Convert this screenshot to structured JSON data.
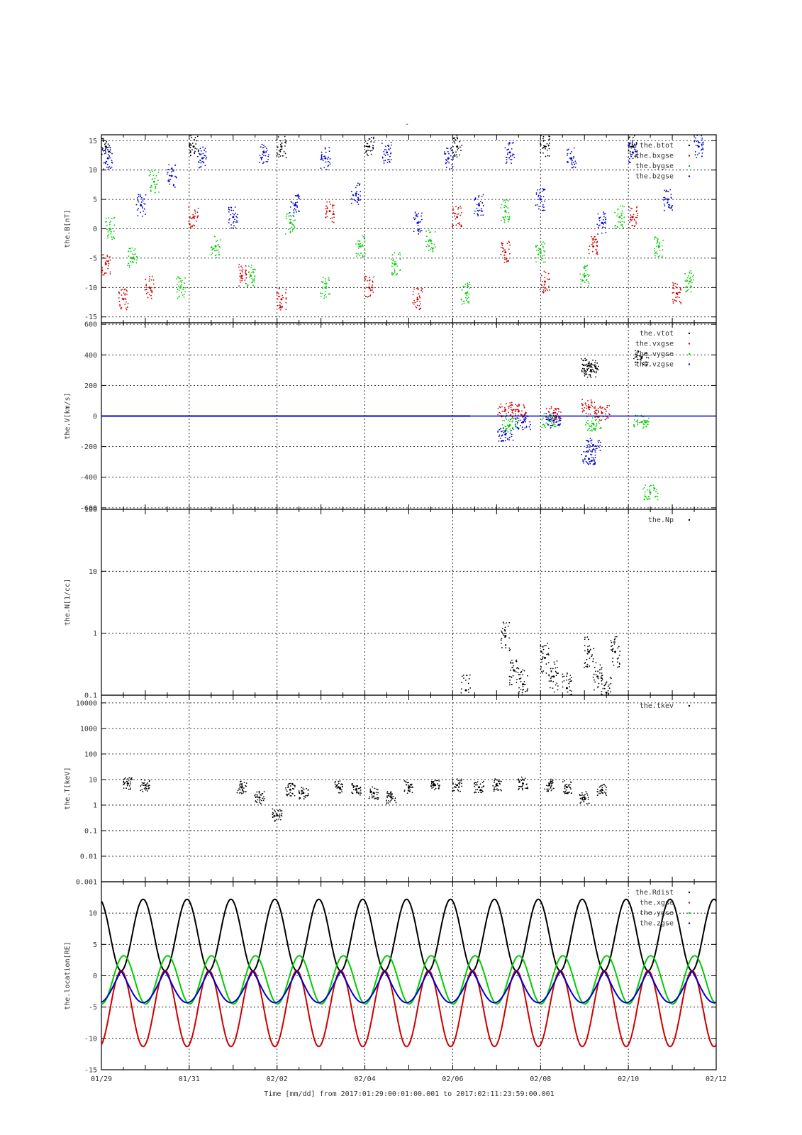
{
  "figure": {
    "title": "-",
    "xlabel": "Time [mm/dd]  from 2017:01:29:00:01:00.001  to  2017:02:11:23:59:00.001"
  },
  "colors": {
    "black": "#000000",
    "red": "#cc0000",
    "green": "#00cc00",
    "blue": "#0000cc"
  },
  "chart_data": [
    {
      "type": "scatter",
      "ylabel": "the.B[nT]",
      "ylim": [
        -16,
        16
      ],
      "yticks": [
        -15,
        -10,
        -5,
        0,
        5,
        10,
        15
      ],
      "ytick_labels": [
        "-15",
        "-10",
        "-5",
        "0",
        "5",
        "10",
        "15"
      ],
      "xlim_days": [
        0,
        14
      ],
      "xtick_labels": [
        "01/29",
        "01/31",
        "02/02",
        "02/04",
        "02/06",
        "02/08",
        "02/10",
        "02/12"
      ],
      "grid": true,
      "legend_position": "top-right",
      "series": [
        {
          "name": "the.btot",
          "color": "#000000",
          "x": [
            0.1,
            2.1,
            4.1,
            6.1,
            8.1,
            10.1,
            12.1
          ],
          "y": [
            14,
            14,
            14,
            14,
            14,
            14,
            14
          ]
        },
        {
          "name": "the.bxgse",
          "color": "#cc0000",
          "x": [
            0.1,
            0.5,
            1.1,
            2.1,
            3.2,
            4.1,
            5.2,
            6.1,
            7.2,
            8.1,
            9.2,
            10.1,
            11.2,
            12.1,
            13.1
          ],
          "y": [
            -6,
            -12,
            -10,
            2,
            -8,
            -12,
            3,
            -10,
            -12,
            2,
            -4,
            -9,
            -3,
            2,
            -11
          ]
        },
        {
          "name": "the.bygse",
          "color": "#00cc00",
          "x": [
            0.2,
            0.7,
            1.2,
            1.8,
            2.6,
            3.4,
            4.3,
            5.1,
            5.9,
            6.7,
            7.5,
            8.3,
            9.2,
            10.0,
            11.0,
            11.8,
            12.7,
            13.4
          ],
          "y": [
            0,
            -5,
            8,
            -10,
            -3,
            -8,
            1,
            -10,
            -3,
            -6,
            -2,
            -11,
            3,
            -4,
            -8,
            2,
            -3,
            -9
          ]
        },
        {
          "name": "the.bzgse",
          "color": "#0000cc",
          "x": [
            0.15,
            0.9,
            1.6,
            2.3,
            3.0,
            3.7,
            4.4,
            5.1,
            5.8,
            6.5,
            7.2,
            7.9,
            8.6,
            9.3,
            10.0,
            10.7,
            11.4,
            12.1,
            12.9,
            13.6
          ],
          "y": [
            12,
            4,
            9,
            12,
            2,
            13,
            4,
            12,
            6,
            13,
            1,
            12,
            4,
            13,
            5,
            12,
            1,
            13,
            5,
            14
          ]
        }
      ]
    },
    {
      "type": "scatter",
      "ylabel": "the.V[km/s]",
      "ylim": [
        -610,
        610
      ],
      "yticks": [
        -600,
        -400,
        -200,
        0,
        200,
        400,
        600
      ],
      "ytick_labels": [
        "-600",
        "-400",
        "-200",
        "0",
        "200",
        "400",
        "600"
      ],
      "xlim_days": [
        0,
        14
      ],
      "grid": true,
      "legend_position": "top-right",
      "series": [
        {
          "name": "the.vtot",
          "color": "#000000",
          "x": [
            11.1,
            11.15,
            12.3
          ],
          "y": [
            330,
            300,
            380
          ]
        },
        {
          "name": "the.vxgse",
          "color": "#cc0000",
          "x": [
            9.2,
            9.5,
            10.3,
            11.1,
            11.4
          ],
          "y": [
            40,
            30,
            20,
            60,
            20
          ]
        },
        {
          "name": "the.vygse",
          "color": "#00cc00",
          "x": [
            9.3,
            10.2,
            11.2,
            12.3,
            12.5
          ],
          "y": [
            -60,
            -30,
            -50,
            -40,
            -500
          ]
        },
        {
          "name": "the.vzgse",
          "color": "#0000cc",
          "x": [
            9.2,
            9.6,
            10.3,
            11.1,
            11.2
          ],
          "y": [
            -120,
            -40,
            -30,
            -280,
            -190
          ]
        }
      ]
    },
    {
      "type": "scatter",
      "ylabel": "the.N[1/cc]",
      "yscale": "log",
      "ylim": [
        0.1,
        100
      ],
      "yticks": [
        0.1,
        1,
        10,
        100
      ],
      "ytick_labels": [
        "0.1",
        "1",
        "10",
        "100"
      ],
      "xlim_days": [
        0,
        14
      ],
      "grid": true,
      "legend_position": "top-right",
      "series": [
        {
          "name": "the.Np",
          "color": "#000000",
          "x": [
            8.3,
            9.2,
            9.4,
            9.6,
            10.1,
            10.3,
            10.6,
            11.1,
            11.3,
            11.5,
            11.7
          ],
          "y": [
            0.12,
            0.9,
            0.25,
            0.15,
            0.4,
            0.2,
            0.13,
            0.5,
            0.2,
            0.11,
            0.5
          ]
        }
      ]
    },
    {
      "type": "scatter",
      "ylabel": "the.T[keV]",
      "yscale": "log",
      "ylim": [
        0.001,
        20000
      ],
      "yticks": [
        0.001,
        0.01,
        0.1,
        1,
        10,
        100,
        1000,
        10000
      ],
      "ytick_labels": [
        "0.001",
        "0.01",
        "0.1",
        "1",
        "10",
        "100",
        "1000",
        "10000"
      ],
      "xlim_days": [
        0,
        14
      ],
      "grid": true,
      "legend_position": "top-right",
      "series": [
        {
          "name": "the.tkev",
          "color": "#000000",
          "x": [
            0.6,
            1.0,
            3.2,
            3.6,
            4.0,
            4.3,
            4.6,
            5.4,
            5.8,
            6.2,
            6.6,
            7.0,
            7.6,
            8.1,
            8.6,
            9.0,
            9.6,
            10.2,
            10.6,
            11.0,
            11.4
          ],
          "y": [
            7,
            6,
            5,
            2,
            0.4,
            4,
            3,
            5,
            4,
            3,
            2,
            5,
            6,
            6,
            5,
            6,
            7,
            6,
            5,
            2,
            4
          ]
        }
      ]
    },
    {
      "type": "line",
      "ylabel": "the.location[RE]",
      "ylim": [
        -15,
        15
      ],
      "yticks": [
        -15,
        -10,
        -5,
        0,
        5,
        10
      ],
      "ytick_labels": [
        "-15",
        "-10",
        "-5",
        "0",
        "5",
        "10"
      ],
      "xlim_days": [
        0,
        14
      ],
      "grid": true,
      "legend_position": "top-right",
      "orbit_period_days": 1.0,
      "series": [
        {
          "name": "the.Rdist",
          "color": "#000000",
          "min": 0.8,
          "max": 12.2
        },
        {
          "name": "the.xgse",
          "color": "#cc0000",
          "min": -11.3,
          "max": 0.8
        },
        {
          "name": "the.ygse",
          "color": "#00cc00",
          "min": -4.5,
          "max": 3.2
        },
        {
          "name": "the.zgse",
          "color": "#0000cc",
          "min": -4.3,
          "max": 0.7
        }
      ]
    }
  ]
}
